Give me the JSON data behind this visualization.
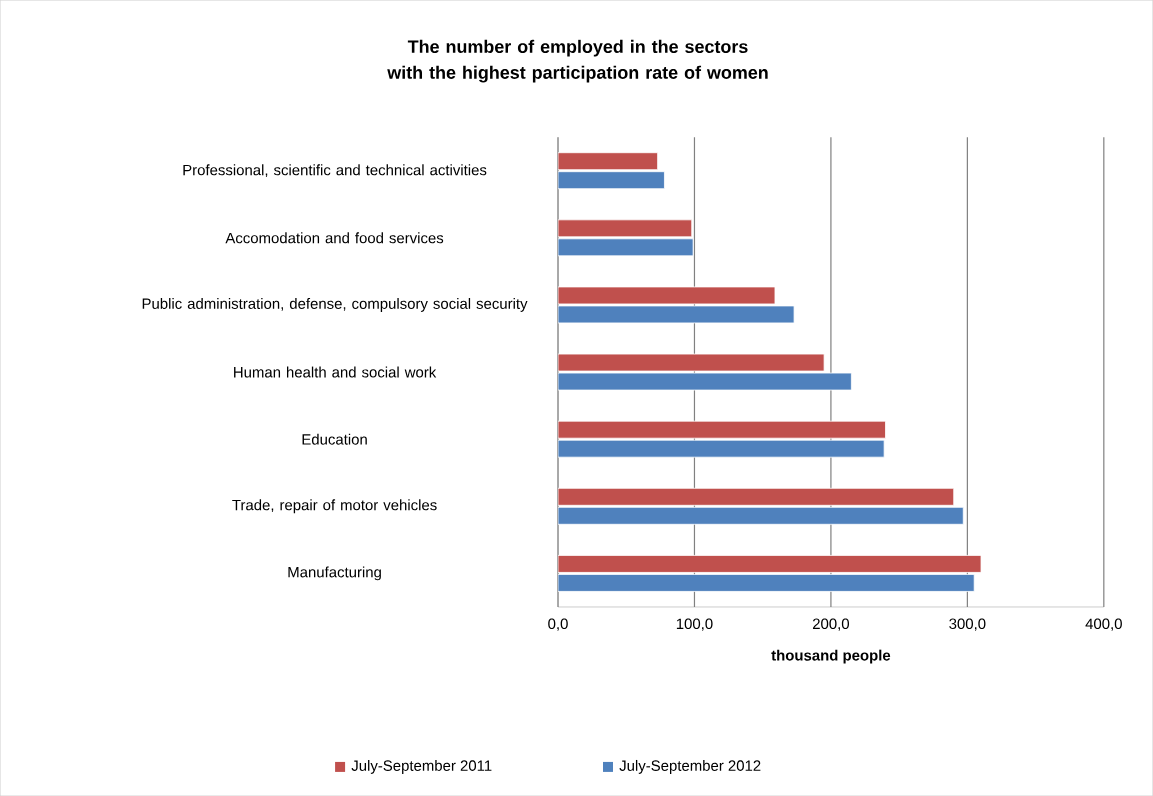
{
  "chart_data": {
    "type": "bar",
    "orientation": "horizontal",
    "title": "The number of employed in the sectors with the highest participation rate of women",
    "xlabel": "thousand people",
    "categories": [
      "Professional, scientific and technical activities",
      "Accomodation and food services",
      "Public administration,  defense, compulsory social security",
      "Human health and social work",
      "Education",
      "Trade, repair of motor vehicles",
      "Manufacturing"
    ],
    "series": [
      {
        "name": "July-September 2011",
        "color": "#c0504d",
        "values": [
          73,
          98,
          159,
          195,
          240,
          290,
          310
        ]
      },
      {
        "name": "July-September 2012",
        "color": "#4f81bd",
        "values": [
          78,
          99,
          173,
          215,
          239,
          297,
          305
        ]
      }
    ],
    "xlim": [
      0,
      400
    ],
    "xticks": [
      {
        "value": 0,
        "label": "0,0"
      },
      {
        "value": 100,
        "label": "100,0"
      },
      {
        "value": 200,
        "label": "200,0"
      },
      {
        "value": 300,
        "label": "300,0"
      },
      {
        "value": 400,
        "label": "400,0"
      }
    ],
    "grid": "x",
    "legend": "bottom"
  }
}
